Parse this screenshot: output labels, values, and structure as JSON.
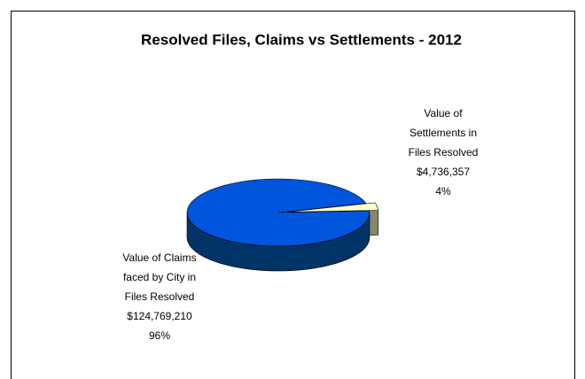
{
  "chart_data": {
    "type": "pie3d",
    "title": "Resolved Files, Claims vs Settlements - 2012",
    "categories": [
      "Value of Claims faced by City in Files Resolved",
      "Value of Settlements in Files Resolved"
    ],
    "values": [
      124769210,
      4736357
    ],
    "value_labels": [
      "$124,769,210",
      "$4,736,357"
    ],
    "percent_labels": [
      "96%",
      "4%"
    ],
    "colors": [
      "#0055dd",
      "#ffffcc"
    ],
    "side_colors": [
      "#003366",
      "#888866"
    ]
  }
}
